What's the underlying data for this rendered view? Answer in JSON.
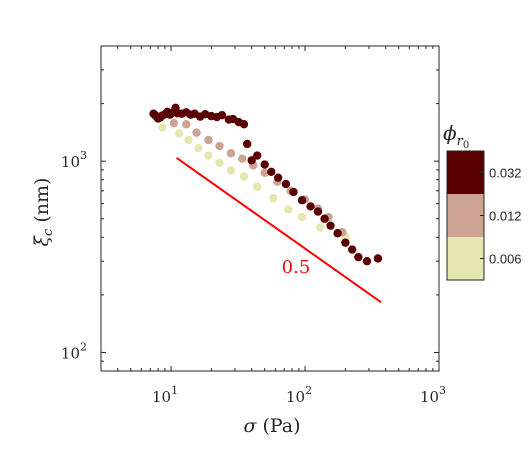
{
  "chart_data": {
    "type": "scatter",
    "xlabel_symbol": "σ",
    "xlabel_unit": "(Pa)",
    "ylabel_symbol": "ξ",
    "ylabel_subscript": "c",
    "ylabel_unit": "(nm)",
    "xscale": "log",
    "yscale": "log",
    "xlim": [
      3,
      1000
    ],
    "ylim": [
      80,
      4000
    ],
    "x_ticks": [
      {
        "value": 10,
        "base": "10",
        "exp": "1"
      },
      {
        "value": 100,
        "base": "10",
        "exp": "2"
      },
      {
        "value": 1000,
        "base": "10",
        "exp": "3"
      }
    ],
    "y_ticks": [
      {
        "value": 100,
        "base": "10",
        "exp": "2"
      },
      {
        "value": 1000,
        "base": "10",
        "exp": "3"
      }
    ],
    "grid": false,
    "marker": "circle",
    "colorbar": {
      "title_symbol": "ϕ",
      "title_sub": "r",
      "title_subsub": "0",
      "entries": [
        {
          "label": "0.032",
          "color": "#590000"
        },
        {
          "label": "0.012",
          "color": "#cda393"
        },
        {
          "label": "0.006",
          "color": "#e6e6b0"
        }
      ]
    },
    "series": [
      {
        "colorbar_value": "0.006",
        "color": "#e6e6b0",
        "points": [
          [
            8.6,
            1500
          ],
          [
            11.5,
            1400
          ],
          [
            13.5,
            1290
          ],
          [
            16,
            1170
          ],
          [
            19,
            1070
          ],
          [
            23,
            980
          ],
          [
            28,
            895
          ],
          [
            35,
            830
          ],
          [
            44,
            735
          ],
          [
            58,
            640
          ],
          [
            75,
            560
          ],
          [
            95,
            510
          ],
          [
            130,
            450
          ],
          [
            200,
            405
          ]
        ]
      },
      {
        "colorbar_value": "0.012",
        "color": "#cda393",
        "points": [
          [
            10.5,
            1580
          ],
          [
            13,
            1560
          ],
          [
            15.5,
            1410
          ],
          [
            19,
            1290
          ],
          [
            23,
            1200
          ],
          [
            28,
            1100
          ],
          [
            34,
            1030
          ],
          [
            41,
            950
          ],
          [
            50,
            870
          ],
          [
            62,
            780
          ],
          [
            78,
            700
          ],
          [
            100,
            630
          ],
          [
            125,
            565
          ],
          [
            150,
            510
          ],
          [
            190,
            425
          ]
        ]
      },
      {
        "colorbar_value": "0.032",
        "color": "#590000",
        "points": [
          [
            7.4,
            1770
          ],
          [
            7.6,
            1740
          ],
          [
            7.8,
            1710
          ],
          [
            8,
            1670
          ],
          [
            8.3,
            1690
          ],
          [
            8.6,
            1730
          ],
          [
            9,
            1760
          ],
          [
            9.4,
            1810
          ],
          [
            9.8,
            1750
          ],
          [
            10.2,
            1790
          ],
          [
            10.8,
            1900
          ],
          [
            11.2,
            1780
          ],
          [
            12,
            1770
          ],
          [
            13,
            1800
          ],
          [
            14,
            1750
          ],
          [
            15,
            1770
          ],
          [
            16.5,
            1710
          ],
          [
            18,
            1760
          ],
          [
            20,
            1720
          ],
          [
            22,
            1700
          ],
          [
            24,
            1740
          ],
          [
            27,
            1650
          ],
          [
            29,
            1660
          ],
          [
            32,
            1600
          ],
          [
            35,
            1560
          ],
          [
            37,
            1230
          ],
          [
            40,
            1010
          ],
          [
            44,
            1070
          ],
          [
            50,
            960
          ],
          [
            56,
            880
          ],
          [
            63,
            820
          ],
          [
            72,
            760
          ],
          [
            82,
            690
          ],
          [
            95,
            625
          ],
          [
            110,
            580
          ],
          [
            125,
            545
          ],
          [
            140,
            500
          ],
          [
            155,
            460
          ],
          [
            175,
            420
          ],
          [
            200,
            375
          ],
          [
            225,
            345
          ],
          [
            250,
            315
          ],
          [
            290,
            300
          ],
          [
            350,
            310
          ]
        ]
      }
    ],
    "annotation": {
      "text": "0.5",
      "anchor_value": [
        95,
        280
      ],
      "color": "#e8100f"
    },
    "reference_line": {
      "x": [
        11,
        370
      ],
      "y": [
        1040,
        183
      ],
      "color": "#ff0000"
    }
  }
}
